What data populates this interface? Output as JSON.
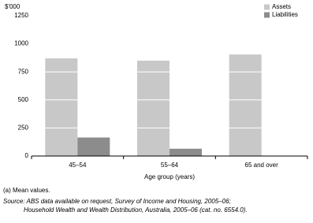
{
  "chart_data": {
    "type": "bar",
    "y_label": "$'000",
    "x_label": "Age group (years)",
    "categories": [
      "45–54",
      "55–64",
      "65 and over"
    ],
    "series": [
      {
        "name": "Assets",
        "color": "#c8c8c8",
        "values": [
          870,
          850,
          905
        ]
      },
      {
        "name": "Liabilities",
        "color": "#8c8c8c",
        "values": [
          165,
          65,
          0
        ]
      }
    ],
    "ylim": [
      0,
      1250
    ],
    "yticks": [
      0,
      250,
      500,
      750,
      1000,
      1250
    ],
    "grid": true,
    "legend": "top-right",
    "notes": [
      "(a) Mean values.",
      "Source: ABS data available on request, Survey of Income and Housing, 2005–06;",
      "Household Wealth and Wealth Distribution, Australia, 2005–06 (cat. no. 6554.0)."
    ]
  }
}
